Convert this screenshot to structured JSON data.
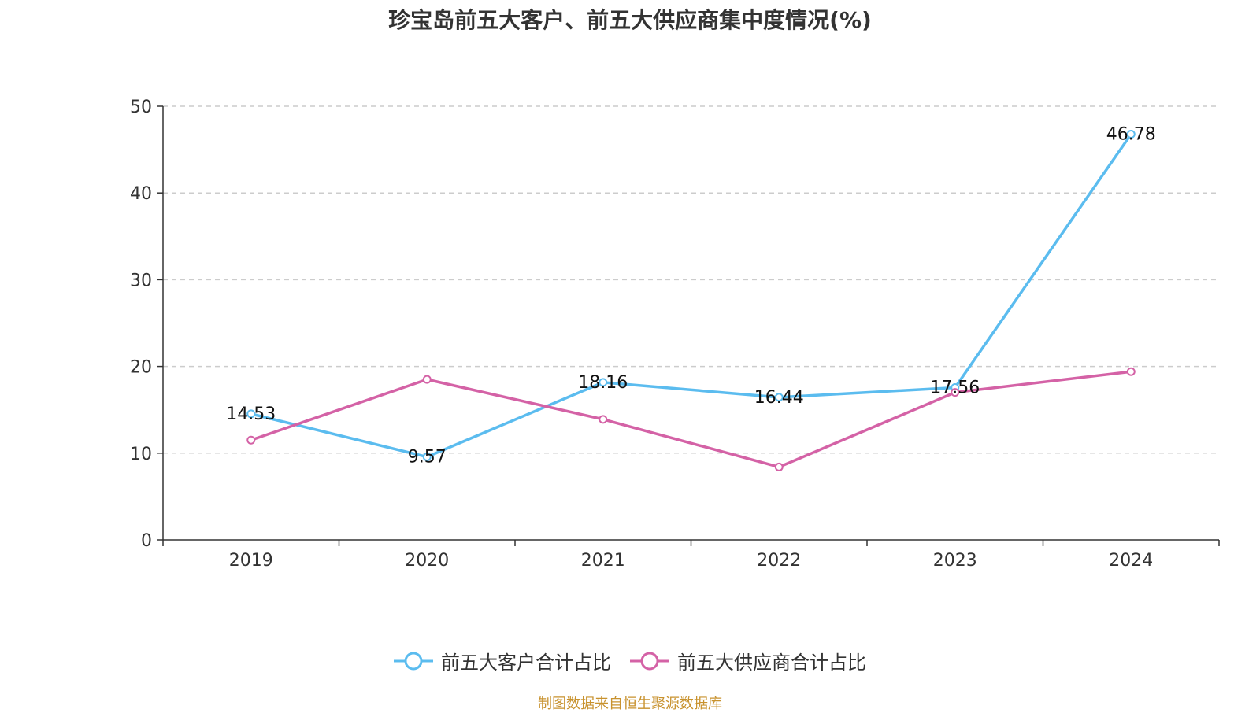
{
  "chart_data": {
    "type": "line",
    "title": "珍宝岛前五大客户、前五大供应商集中度情况(%)",
    "categories": [
      "2019",
      "2020",
      "2021",
      "2022",
      "2023",
      "2024"
    ],
    "series": [
      {
        "name": "前五大客户合计占比",
        "values": [
          14.53,
          9.57,
          18.16,
          16.44,
          17.56,
          46.78
        ],
        "labels": [
          "14.53",
          "9.57",
          "18.16",
          "16.44",
          "17.56",
          "46.78"
        ],
        "color": "#5bbcef"
      },
      {
        "name": "前五大供应商合计占比",
        "values": [
          11.5,
          18.5,
          13.9,
          8.4,
          17.0,
          19.4
        ],
        "color": "#d462a6"
      }
    ],
    "ylim": [
      0,
      50
    ],
    "yticks": [
      "0",
      "10",
      "20",
      "30",
      "40",
      "50"
    ],
    "grid": true,
    "legend_position": "bottom"
  },
  "source": "制图数据来自恒生聚源数据库"
}
